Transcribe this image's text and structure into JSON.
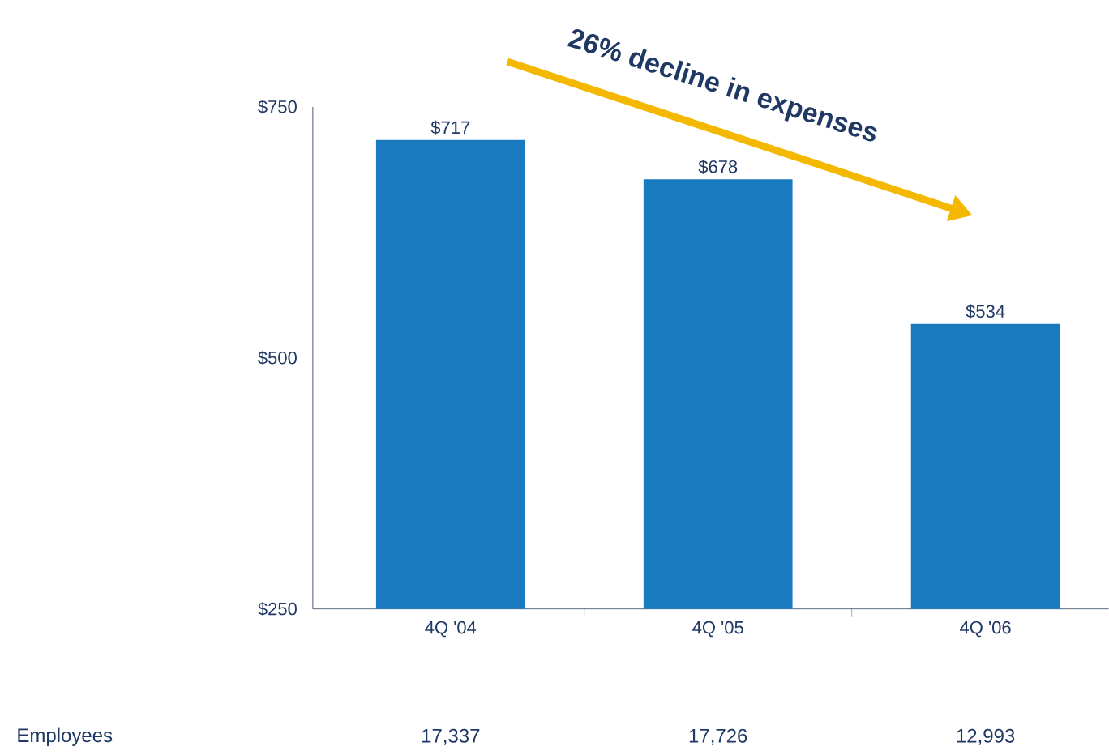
{
  "chart_data": {
    "type": "bar",
    "categories": [
      "4Q '04",
      "4Q '05",
      "4Q '06"
    ],
    "values": [
      717,
      678,
      534
    ],
    "value_labels": [
      "$717",
      "$678",
      "$534"
    ],
    "color": "#1a7abf",
    "ylim": [
      250,
      750
    ],
    "yticks": [
      {
        "value": 250,
        "label": "$250"
      },
      {
        "value": 500,
        "label": "$500"
      },
      {
        "value": 750,
        "label": "$750"
      }
    ],
    "grid": false,
    "annotations": [
      "26% decline in expenses",
      "Employees",
      "17,337",
      "17,726",
      "12,993"
    ]
  }
}
